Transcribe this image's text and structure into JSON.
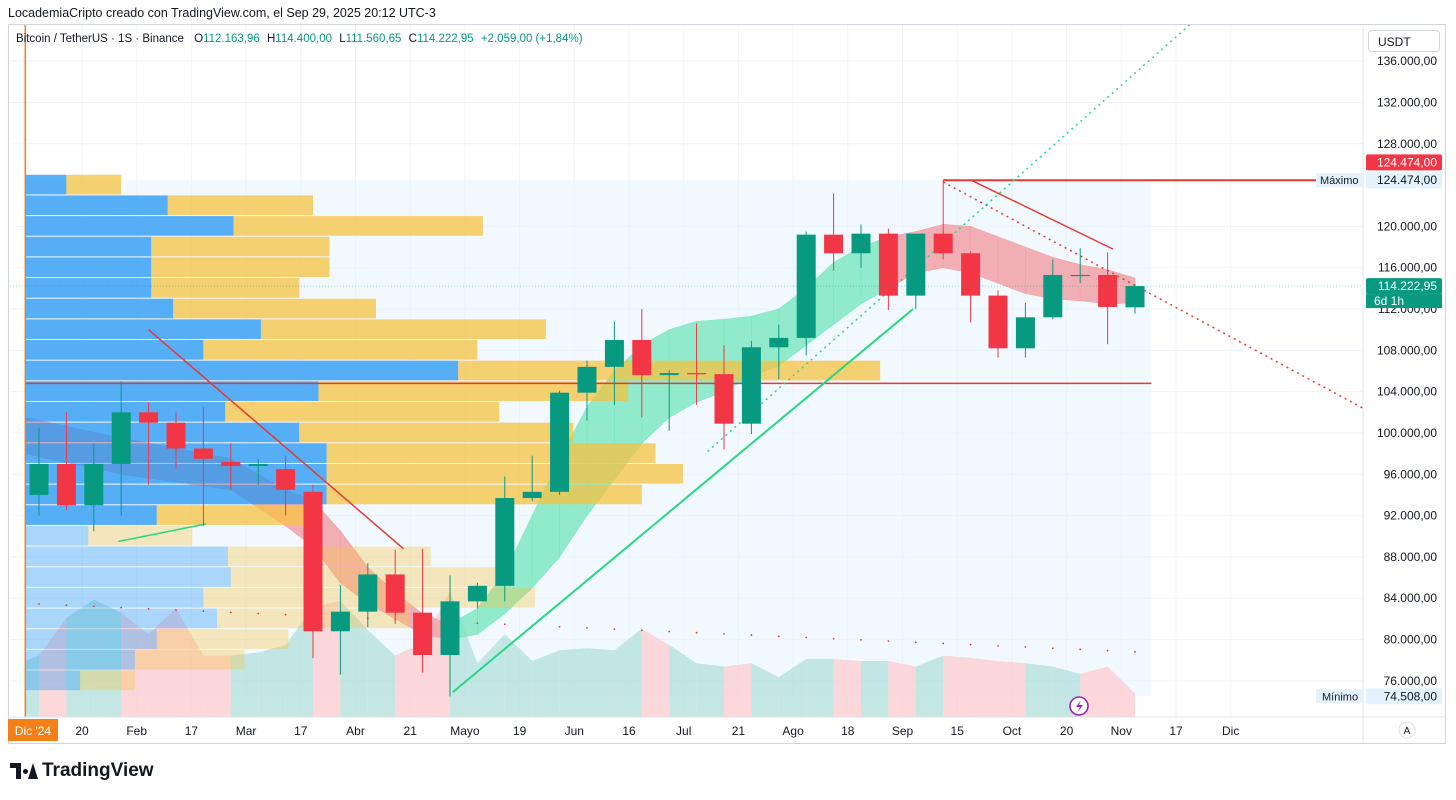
{
  "header": {
    "attribution": "LocademiaCripto creado con TradingView.com, el Sep 29, 2025 20:12 UTC-3"
  },
  "legend": {
    "symbol": "Bitcoin / TetherUS · 1S · Binance",
    "open_label": "O",
    "open": "112.163,96",
    "high_label": "H",
    "high": "114.400,00",
    "low_label": "L",
    "low": "111.560,65",
    "close_label": "C",
    "close": "114.222,95",
    "change": "+2.059,00 (+1,84%)"
  },
  "currency_button": "USDT",
  "footer": {
    "brand": "TradingView",
    "auto_scale": "A"
  },
  "colors": {
    "up": "#089981",
    "down": "#f23645",
    "volume_up": "#b2dfdb",
    "volume_down": "#fccbcd",
    "vp_blue": "#2196f3",
    "vp_yellow": "#f5c242",
    "ribbon_green": "#7fe8c2",
    "ribbon_red": "#f1a2a8",
    "accent_orange": "#f57f17",
    "trend_green": "#26d97f"
  },
  "chart_data": {
    "type": "candlestick",
    "title": "Bitcoin / TetherUS · 1S · Binance",
    "ylim": [
      72500,
      139500
    ],
    "y_ticks": [
      {
        "v": 136000,
        "label": "136.000,00"
      },
      {
        "v": 132000,
        "label": "132.000,00"
      },
      {
        "v": 128000,
        "label": "128.000,00"
      },
      {
        "v": 120000,
        "label": "120.000,00"
      },
      {
        "v": 116000,
        "label": "116.000,00"
      },
      {
        "v": 112000,
        "label": "112.000,00"
      },
      {
        "v": 108000,
        "label": "108.000,00"
      },
      {
        "v": 104000,
        "label": "104.000,00"
      },
      {
        "v": 100000,
        "label": "100.000,00"
      },
      {
        "v": 96000,
        "label": "96.000,00"
      },
      {
        "v": 92000,
        "label": "92.000,00"
      },
      {
        "v": 88000,
        "label": "88.000,00"
      },
      {
        "v": 84000,
        "label": "84.000,00"
      },
      {
        "v": 80000,
        "label": "80.000,00"
      },
      {
        "v": 76000,
        "label": "76.000,00"
      }
    ],
    "x_ticks": [
      "Dic '24",
      "20",
      "Feb",
      "17",
      "Mar",
      "17",
      "Abr",
      "21",
      "Mayo",
      "19",
      "Jun",
      "16",
      "Jul",
      "21",
      "Ago",
      "18",
      "Sep",
      "15",
      "Oct",
      "20",
      "Nov",
      "17",
      "Dic"
    ],
    "candles": [
      {
        "o": 94000,
        "h": 100500,
        "l": 92000,
        "c": 97000
      },
      {
        "o": 97000,
        "h": 102000,
        "l": 92500,
        "c": 93000
      },
      {
        "o": 93000,
        "h": 99000,
        "l": 90500,
        "c": 97000
      },
      {
        "o": 97000,
        "h": 105000,
        "l": 92000,
        "c": 102000
      },
      {
        "o": 102000,
        "h": 103000,
        "l": 95000,
        "c": 101000
      },
      {
        "o": 101000,
        "h": 102000,
        "l": 96500,
        "c": 98500
      },
      {
        "o": 98500,
        "h": 102500,
        "l": 91000,
        "c": 97500
      },
      {
        "o": 97200,
        "h": 99000,
        "l": 94500,
        "c": 96800
      },
      {
        "o": 96800,
        "h": 97500,
        "l": 95000,
        "c": 97000
      },
      {
        "o": 96500,
        "h": 97800,
        "l": 92000,
        "c": 94500
      },
      {
        "o": 94300,
        "h": 95000,
        "l": 78200,
        "c": 80800
      },
      {
        "o": 80800,
        "h": 85300,
        "l": 76600,
        "c": 82700
      },
      {
        "o": 82700,
        "h": 87400,
        "l": 81200,
        "c": 86300
      },
      {
        "o": 86300,
        "h": 88700,
        "l": 81500,
        "c": 82600
      },
      {
        "o": 82600,
        "h": 88800,
        "l": 76800,
        "c": 78500
      },
      {
        "o": 78500,
        "h": 86200,
        "l": 74500,
        "c": 83700
      },
      {
        "o": 83700,
        "h": 85500,
        "l": 83000,
        "c": 85200
      },
      {
        "o": 85200,
        "h": 95800,
        "l": 83700,
        "c": 93700
      },
      {
        "o": 93700,
        "h": 97800,
        "l": 93400,
        "c": 94300
      },
      {
        "o": 94300,
        "h": 104100,
        "l": 94000,
        "c": 103900
      },
      {
        "o": 103900,
        "h": 107000,
        "l": 101200,
        "c": 106400
      },
      {
        "o": 106400,
        "h": 110800,
        "l": 102700,
        "c": 109000
      },
      {
        "o": 109000,
        "h": 112000,
        "l": 101500,
        "c": 105600
      },
      {
        "o": 105600,
        "h": 106100,
        "l": 100200,
        "c": 105800
      },
      {
        "o": 105800,
        "h": 110600,
        "l": 102700,
        "c": 105700
      },
      {
        "o": 105700,
        "h": 108500,
        "l": 98400,
        "c": 100900
      },
      {
        "o": 100900,
        "h": 108900,
        "l": 99900,
        "c": 108300
      },
      {
        "o": 108300,
        "h": 110500,
        "l": 105200,
        "c": 109200
      },
      {
        "o": 109200,
        "h": 119500,
        "l": 107500,
        "c": 119200
      },
      {
        "o": 119200,
        "h": 123200,
        "l": 115700,
        "c": 117400
      },
      {
        "o": 117400,
        "h": 120200,
        "l": 116000,
        "c": 119300
      },
      {
        "o": 119300,
        "h": 119800,
        "l": 111900,
        "c": 113300
      },
      {
        "o": 113300,
        "h": 119300,
        "l": 112000,
        "c": 119300
      },
      {
        "o": 119300,
        "h": 124474,
        "l": 116800,
        "c": 117400
      },
      {
        "o": 117400,
        "h": 117600,
        "l": 110700,
        "c": 113300
      },
      {
        "o": 113300,
        "h": 113800,
        "l": 107300,
        "c": 108200
      },
      {
        "o": 108200,
        "h": 112600,
        "l": 107300,
        "c": 111200
      },
      {
        "o": 111200,
        "h": 116800,
        "l": 111000,
        "c": 115300
      },
      {
        "o": 115300,
        "h": 117900,
        "l": 114500,
        "c": 115300
      },
      {
        "o": 115300,
        "h": 117500,
        "l": 108600,
        "c": 112200
      },
      {
        "o": 112163.96,
        "h": 114400,
        "l": 111560.65,
        "c": 114222.95
      }
    ],
    "volume_profile": [
      {
        "p": 124000,
        "blue": 1.5,
        "yellow": 2.0,
        "hl": false
      },
      {
        "p": 122000,
        "blue": 5.2,
        "yellow": 5.3,
        "hl": false
      },
      {
        "p": 120000,
        "blue": 7.6,
        "yellow": 9.1,
        "hl": false
      },
      {
        "p": 118000,
        "blue": 4.6,
        "yellow": 6.5,
        "hl": false
      },
      {
        "p": 116000,
        "blue": 4.6,
        "yellow": 6.5,
        "hl": false
      },
      {
        "p": 114000,
        "blue": 4.6,
        "yellow": 5.4,
        "hl": false
      },
      {
        "p": 112000,
        "blue": 5.4,
        "yellow": 7.4,
        "hl": false
      },
      {
        "p": 110000,
        "blue": 8.6,
        "yellow": 10.4,
        "hl": false
      },
      {
        "p": 108000,
        "blue": 6.5,
        "yellow": 10.0,
        "hl": false
      },
      {
        "p": 106000,
        "blue": 15.8,
        "yellow": 15.4,
        "hl": true
      },
      {
        "p": 104000,
        "blue": 10.7,
        "yellow": 11.3,
        "hl": false
      },
      {
        "p": 102000,
        "blue": 7.3,
        "yellow": 10.0,
        "hl": false
      },
      {
        "p": 100000,
        "blue": 10.0,
        "yellow": 10.0,
        "hl": false
      },
      {
        "p": 98000,
        "blue": 11.0,
        "yellow": 12.0,
        "hl": false
      },
      {
        "p": 96000,
        "blue": 11.0,
        "yellow": 13.0,
        "hl": false
      },
      {
        "p": 94000,
        "blue": 11.0,
        "yellow": 11.5,
        "hl": false
      },
      {
        "p": 92000,
        "blue": 4.8,
        "yellow": 5.4,
        "hl": false
      },
      {
        "p": 90000,
        "blue": 2.3,
        "yellow": 3.8,
        "hl": false
      },
      {
        "p": 88000,
        "blue": 7.4,
        "yellow": 7.4,
        "hl": false
      },
      {
        "p": 86000,
        "blue": 7.5,
        "yellow": 9.8,
        "hl": false
      },
      {
        "p": 84000,
        "blue": 6.5,
        "yellow": 12.1,
        "hl": false
      },
      {
        "p": 82000,
        "blue": 7.0,
        "yellow": 7.0,
        "hl": false
      },
      {
        "p": 80000,
        "blue": 4.8,
        "yellow": 4.8,
        "hl": false
      },
      {
        "p": 78000,
        "blue": 4.0,
        "yellow": 4.0,
        "hl": false
      },
      {
        "p": 76000,
        "blue": 2.0,
        "yellow": 2.0,
        "hl": false
      }
    ],
    "volume_profile_x_range": [
      -0.5,
      11.5
    ],
    "ribbon": [
      {
        "i": -0.5,
        "lo": 98000,
        "hi": 101500,
        "dir": "down"
      },
      {
        "i": 3,
        "lo": 96000,
        "hi": 99500,
        "dir": "down"
      },
      {
        "i": 7,
        "lo": 94500,
        "hi": 97500,
        "dir": "down"
      },
      {
        "i": 9,
        "lo": 91000,
        "hi": 94500,
        "dir": "down"
      },
      {
        "i": 10,
        "lo": 89000,
        "hi": 93500,
        "dir": "down"
      },
      {
        "i": 11,
        "lo": 85500,
        "hi": 90500,
        "dir": "down"
      },
      {
        "i": 12,
        "lo": 83500,
        "hi": 87000,
        "dir": "down"
      },
      {
        "i": 13,
        "lo": 82000,
        "hi": 84500,
        "dir": "down"
      },
      {
        "i": 14,
        "lo": 80500,
        "hi": 82500,
        "dir": "down"
      },
      {
        "i": 15,
        "lo": 80000,
        "hi": 81500,
        "dir": "down"
      },
      {
        "i": 16,
        "lo": 80500,
        "hi": 83000,
        "dir": "up"
      },
      {
        "i": 17,
        "lo": 82500,
        "hi": 86500,
        "dir": "up"
      },
      {
        "i": 18,
        "lo": 85000,
        "hi": 92000,
        "dir": "up"
      },
      {
        "i": 19,
        "lo": 88000,
        "hi": 97500,
        "dir": "up"
      },
      {
        "i": 20,
        "lo": 92000,
        "hi": 102500,
        "dir": "up"
      },
      {
        "i": 21,
        "lo": 95500,
        "hi": 106000,
        "dir": "up"
      },
      {
        "i": 22,
        "lo": 99000,
        "hi": 108500,
        "dir": "up"
      },
      {
        "i": 23,
        "lo": 101500,
        "hi": 110000,
        "dir": "up"
      },
      {
        "i": 24,
        "lo": 103000,
        "hi": 110800,
        "dir": "up"
      },
      {
        "i": 25,
        "lo": 104000,
        "hi": 111000,
        "dir": "up"
      },
      {
        "i": 26,
        "lo": 105500,
        "hi": 111300,
        "dir": "up"
      },
      {
        "i": 27,
        "lo": 106500,
        "hi": 112000,
        "dir": "up"
      },
      {
        "i": 28,
        "lo": 108500,
        "hi": 114000,
        "dir": "up"
      },
      {
        "i": 29,
        "lo": 110500,
        "hi": 116500,
        "dir": "up"
      },
      {
        "i": 30,
        "lo": 112500,
        "hi": 118000,
        "dir": "up"
      },
      {
        "i": 31,
        "lo": 114000,
        "hi": 119000,
        "dir": "up"
      },
      {
        "i": 32,
        "lo": 115500,
        "hi": 119500,
        "dir": "down"
      },
      {
        "i": 33,
        "lo": 116000,
        "hi": 120200,
        "dir": "down"
      },
      {
        "i": 34,
        "lo": 115500,
        "hi": 120000,
        "dir": "down"
      },
      {
        "i": 35,
        "lo": 114500,
        "hi": 119000,
        "dir": "down"
      },
      {
        "i": 36,
        "lo": 113500,
        "hi": 118000,
        "dir": "down"
      },
      {
        "i": 37,
        "lo": 113000,
        "hi": 117000,
        "dir": "down"
      },
      {
        "i": 38,
        "lo": 112800,
        "hi": 116300,
        "dir": "down"
      },
      {
        "i": 39,
        "lo": 112500,
        "hi": 115800,
        "dir": "down"
      },
      {
        "i": 40,
        "lo": 112600,
        "hi": 115000,
        "dir": "down"
      }
    ],
    "volume_pane": {
      "ylim": [
        72800,
        86000
      ],
      "values": [
        {
          "i": -0.5,
          "v": 78000,
          "dir": "up"
        },
        {
          "i": 0,
          "v": 78500,
          "dir": "down"
        },
        {
          "i": 1,
          "v": 82000,
          "dir": "up"
        },
        {
          "i": 2,
          "v": 83700,
          "dir": "up"
        },
        {
          "i": 3,
          "v": 82500,
          "dir": "down"
        },
        {
          "i": 4,
          "v": 80500,
          "dir": "down"
        },
        {
          "i": 5,
          "v": 82900,
          "dir": "down"
        },
        {
          "i": 6,
          "v": 78500,
          "dir": "down"
        },
        {
          "i": 7,
          "v": 78500,
          "dir": "up"
        },
        {
          "i": 8,
          "v": 78800,
          "dir": "up"
        },
        {
          "i": 9,
          "v": 79500,
          "dir": "up"
        },
        {
          "i": 10,
          "v": 83000,
          "dir": "down"
        },
        {
          "i": 11,
          "v": 83600,
          "dir": "up"
        },
        {
          "i": 12,
          "v": 80900,
          "dir": "up"
        },
        {
          "i": 13,
          "v": 78500,
          "dir": "down"
        },
        {
          "i": 14,
          "v": 79700,
          "dir": "down"
        },
        {
          "i": 15,
          "v": 84500,
          "dir": "up"
        },
        {
          "i": 16,
          "v": 77800,
          "dir": "up"
        },
        {
          "i": 17,
          "v": 80500,
          "dir": "up"
        },
        {
          "i": 18,
          "v": 78000,
          "dir": "up"
        },
        {
          "i": 19,
          "v": 79000,
          "dir": "up"
        },
        {
          "i": 20,
          "v": 79200,
          "dir": "up"
        },
        {
          "i": 21,
          "v": 79000,
          "dir": "up"
        },
        {
          "i": 22,
          "v": 81000,
          "dir": "down"
        },
        {
          "i": 23,
          "v": 79500,
          "dir": "up"
        },
        {
          "i": 24,
          "v": 77800,
          "dir": "up"
        },
        {
          "i": 25,
          "v": 77500,
          "dir": "down"
        },
        {
          "i": 26,
          "v": 77800,
          "dir": "up"
        },
        {
          "i": 27,
          "v": 76500,
          "dir": "up"
        },
        {
          "i": 28,
          "v": 78200,
          "dir": "up"
        },
        {
          "i": 29,
          "v": 78200,
          "dir": "down"
        },
        {
          "i": 30,
          "v": 78000,
          "dir": "up"
        },
        {
          "i": 31,
          "v": 78000,
          "dir": "down"
        },
        {
          "i": 32,
          "v": 77500,
          "dir": "up"
        },
        {
          "i": 33,
          "v": 78500,
          "dir": "down"
        },
        {
          "i": 34,
          "v": 78300,
          "dir": "down"
        },
        {
          "i": 35,
          "v": 78000,
          "dir": "down"
        },
        {
          "i": 36,
          "v": 77800,
          "dir": "up"
        },
        {
          "i": 37,
          "v": 77500,
          "dir": "up"
        },
        {
          "i": 38,
          "v": 76800,
          "dir": "down"
        },
        {
          "i": 39,
          "v": 77500,
          "dir": "down"
        },
        {
          "i": 40,
          "v": 75000,
          "dir": "up"
        }
      ]
    },
    "dots": [
      {
        "i": -0.5,
        "v": 81500
      },
      {
        "i": 40,
        "v": 77000
      }
    ],
    "range_box": {
      "i0": -0.5,
      "i1": 40.6,
      "top": 124474,
      "bottom": 74508
    },
    "lines": [
      {
        "name": "resistance-104k-line",
        "i0": -0.5,
        "v0": 104800,
        "i1": 40.6,
        "v1": 104800,
        "color": "#e53935",
        "dash": "",
        "w": 1.5
      },
      {
        "name": "max-line",
        "i0": 33,
        "v0": 124474,
        "i1": 49.5,
        "v1": 124474,
        "color": "#e53935",
        "dash": "",
        "w": 2
      },
      {
        "name": "downtrend-line-left",
        "i0": 4,
        "v0": 110000,
        "i1": 13.3,
        "v1": 88800,
        "color": "#e53935",
        "dash": "",
        "w": 1.5
      },
      {
        "name": "downtrend-line-right",
        "i0": 34,
        "v0": 124500,
        "i1": 39.2,
        "v1": 117800,
        "color": "#e53935",
        "dash": "",
        "w": 1.5
      },
      {
        "name": "downtrend-dotted-line",
        "i0": 33,
        "v0": 124300,
        "i1": 49.3,
        "v1": 101000,
        "color": "#e53935",
        "dash": "2,4",
        "w": 1.5
      },
      {
        "name": "uptrend-line-lower",
        "i0": 15.1,
        "v0": 74900,
        "i1": 31.9,
        "v1": 112000,
        "color": "#26d97f",
        "dash": "",
        "w": 2
      },
      {
        "name": "uptrend-dotted-line",
        "i0": 24.4,
        "v0": 98200,
        "i1": 42.2,
        "v1": 140000,
        "color": "#26d97f",
        "dash": "2,4",
        "w": 1.5
      },
      {
        "name": "small-green-line",
        "i0": 2.9,
        "v0": 89500,
        "i1": 6.1,
        "v1": 91200,
        "color": "#26d97f",
        "dash": "",
        "w": 1.5
      },
      {
        "name": "orange-vertical-line",
        "i0": -0.5,
        "v0": 139500,
        "i1": -0.5,
        "v1": 72500,
        "color": "#f57f17",
        "dash": "",
        "w": 1.5
      }
    ],
    "price_labels": [
      {
        "name": "max-price-label",
        "v": 126200,
        "text": "124.474,00",
        "bg": "#f23645",
        "color": "#ffffff"
      },
      {
        "name": "max-level-label",
        "v": 124474,
        "text": "124.474,00",
        "bg": "#e3f2fd",
        "color": "#131722"
      },
      {
        "name": "last-price-label",
        "v": 114222.95,
        "text": "114.222,95",
        "bg": "#089981",
        "color": "#ffffff"
      },
      {
        "name": "min-level-label",
        "v": 74508,
        "text": "74.508,00",
        "bg": "#e3f2fd",
        "color": "#131722"
      }
    ],
    "countdown": "6d 1h",
    "max_tag": "Máximo",
    "min_tag": "Mínimo"
  }
}
